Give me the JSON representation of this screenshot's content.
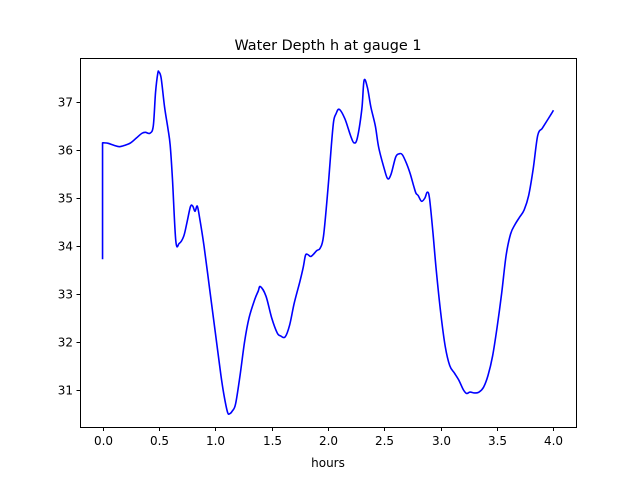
{
  "chart_data": {
    "type": "line",
    "title": "Water Depth h at gauge 1",
    "xlabel": "hours",
    "ylabel": "",
    "xlim": [
      -0.2,
      4.2
    ],
    "ylim": [
      30.22,
      37.92
    ],
    "xticks": [
      0.0,
      0.5,
      1.0,
      1.5,
      2.0,
      2.5,
      3.0,
      3.5,
      4.0
    ],
    "xtick_labels": [
      "0.0",
      "0.5",
      "1.0",
      "1.5",
      "2.0",
      "2.5",
      "3.0",
      "3.5",
      "4.0"
    ],
    "yticks": [
      31,
      32,
      33,
      34,
      35,
      36,
      37
    ],
    "ytick_labels": [
      "31",
      "32",
      "33",
      "34",
      "35",
      "36",
      "37"
    ],
    "grid": false,
    "legend": "none",
    "series": [
      {
        "color": "#0000ff",
        "x": [
          0.0,
          0.0,
          0.01,
          0.05,
          0.1,
          0.15,
          0.2,
          0.25,
          0.3,
          0.35,
          0.38,
          0.42,
          0.45,
          0.47,
          0.49,
          0.5,
          0.52,
          0.55,
          0.58,
          0.6,
          0.62,
          0.65,
          0.68,
          0.72,
          0.75,
          0.78,
          0.8,
          0.82,
          0.84,
          0.86,
          0.9,
          0.95,
          1.0,
          1.05,
          1.08,
          1.11,
          1.13,
          1.15,
          1.18,
          1.22,
          1.26,
          1.3,
          1.35,
          1.38,
          1.4,
          1.45,
          1.5,
          1.55,
          1.58,
          1.62,
          1.66,
          1.7,
          1.75,
          1.78,
          1.8,
          1.82,
          1.85,
          1.9,
          1.93,
          1.96,
          2.0,
          2.03,
          2.05,
          2.07,
          2.1,
          2.15,
          2.2,
          2.23,
          2.26,
          2.3,
          2.32,
          2.35,
          2.38,
          2.42,
          2.45,
          2.5,
          2.53,
          2.56,
          2.6,
          2.63,
          2.66,
          2.7,
          2.73,
          2.76,
          2.78,
          2.8,
          2.83,
          2.86,
          2.88,
          2.9,
          2.93,
          2.96,
          3.0,
          3.04,
          3.08,
          3.12,
          3.16,
          3.2,
          3.23,
          3.26,
          3.3,
          3.34,
          3.38,
          3.42,
          3.46,
          3.5,
          3.54,
          3.58,
          3.62,
          3.66,
          3.7,
          3.74,
          3.78,
          3.82,
          3.86,
          3.9,
          3.94,
          3.98,
          4.0
        ],
        "y": [
          33.72,
          36.15,
          36.15,
          36.14,
          36.1,
          36.07,
          36.1,
          36.15,
          36.25,
          36.35,
          36.37,
          36.35,
          36.5,
          37.2,
          37.6,
          37.63,
          37.5,
          36.9,
          36.45,
          36.1,
          35.4,
          34.1,
          34.05,
          34.2,
          34.5,
          34.82,
          34.83,
          34.72,
          34.83,
          34.6,
          34.0,
          33.1,
          32.2,
          31.3,
          30.85,
          30.52,
          30.5,
          30.55,
          30.7,
          31.3,
          32.0,
          32.5,
          32.88,
          33.05,
          33.15,
          32.95,
          32.5,
          32.18,
          32.12,
          32.1,
          32.35,
          32.8,
          33.25,
          33.55,
          33.8,
          33.82,
          33.78,
          33.9,
          33.95,
          34.2,
          35.2,
          36.1,
          36.6,
          36.75,
          36.85,
          36.65,
          36.3,
          36.15,
          36.25,
          36.85,
          37.45,
          37.3,
          36.9,
          36.5,
          36.05,
          35.6,
          35.4,
          35.5,
          35.85,
          35.92,
          35.9,
          35.7,
          35.5,
          35.25,
          35.1,
          35.05,
          34.93,
          35.0,
          35.12,
          35.0,
          34.3,
          33.5,
          32.6,
          31.9,
          31.5,
          31.35,
          31.2,
          31.0,
          30.92,
          30.95,
          30.93,
          30.95,
          31.05,
          31.3,
          31.7,
          32.3,
          33.0,
          33.8,
          34.25,
          34.45,
          34.6,
          34.75,
          35.05,
          35.6,
          36.3,
          36.45,
          36.6,
          36.75,
          36.83
        ]
      }
    ]
  }
}
